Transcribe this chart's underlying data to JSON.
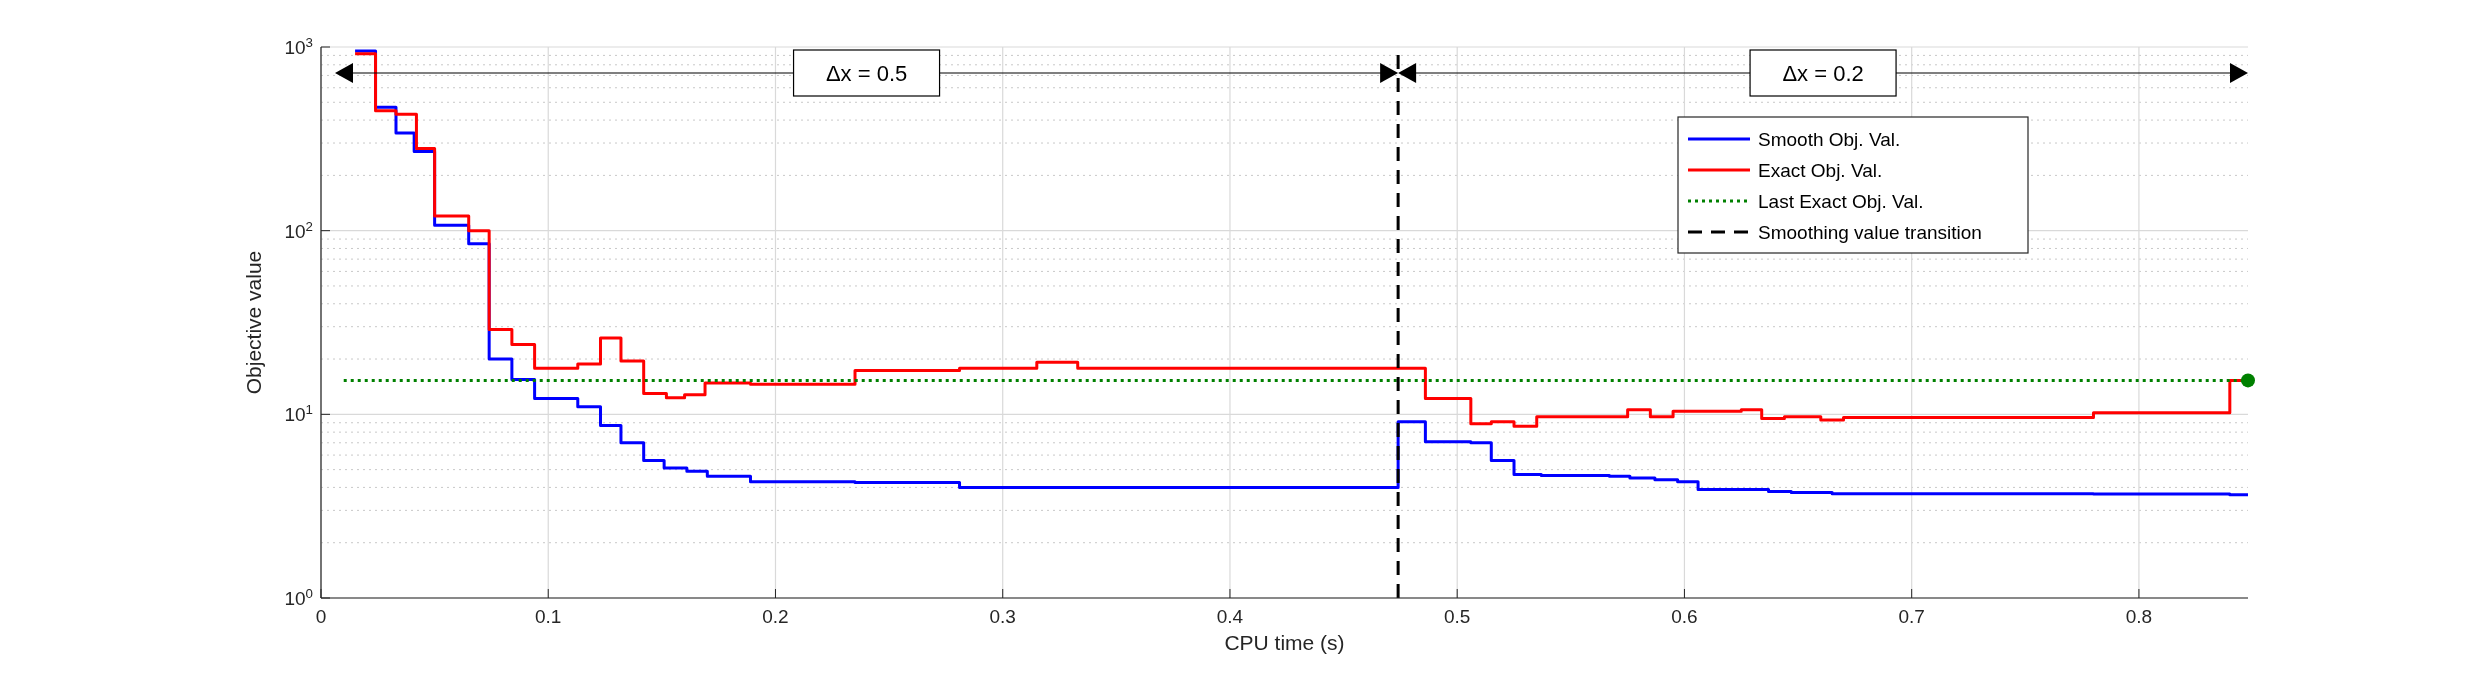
{
  "chart_data": {
    "type": "step",
    "xlabel": "CPU time (s)",
    "ylabel": "Objective value",
    "log": "y",
    "xlim": [
      0,
      0.848
    ],
    "xticks": [
      0,
      0.1,
      0.2,
      0.3,
      0.4,
      0.5,
      0.6,
      0.7,
      0.8
    ],
    "ylim": [
      1,
      1000
    ],
    "yticks": [
      {
        "value": 1,
        "label": "10$^{0}$"
      },
      {
        "value": 10,
        "label": "10$^{1}$"
      },
      {
        "value": 100,
        "label": "10$^{2}$"
      },
      {
        "value": 1000,
        "label": "10$^{3}$"
      }
    ],
    "grid": true,
    "legend": "top right",
    "series": [
      {
        "name": "Smooth Obj. Val.",
        "color": "#0000ff",
        "x": [
          0.015,
          0.024,
          0.033,
          0.041,
          0.05,
          0.065,
          0.074,
          0.084,
          0.094,
          0.113,
          0.123,
          0.132,
          0.142,
          0.151,
          0.161,
          0.17,
          0.189,
          0.235,
          0.281,
          0.474,
          0.474,
          0.486,
          0.506,
          0.515,
          0.525,
          0.537,
          0.567,
          0.576,
          0.587,
          0.597,
          0.606,
          0.637,
          0.647,
          0.665,
          0.78,
          0.84,
          0.848
        ],
        "values": [
          950,
          470,
          340,
          270,
          107,
          85,
          20,
          15.5,
          12.2,
          11,
          8.7,
          7,
          5.6,
          5.1,
          4.9,
          4.6,
          4.3,
          4.25,
          4.0,
          4.0,
          9.1,
          7.1,
          7.0,
          5.6,
          4.7,
          4.65,
          4.6,
          4.5,
          4.4,
          4.3,
          3.9,
          3.8,
          3.75,
          3.7,
          3.68,
          3.65,
          3.65
        ]
      },
      {
        "name": "Exact Obj. Val.",
        "color": "#ff0000",
        "x": [
          0.015,
          0.024,
          0.033,
          0.042,
          0.05,
          0.065,
          0.074,
          0.084,
          0.094,
          0.113,
          0.123,
          0.132,
          0.142,
          0.152,
          0.16,
          0.169,
          0.189,
          0.235,
          0.281,
          0.315,
          0.333,
          0.486,
          0.506,
          0.515,
          0.525,
          0.535,
          0.575,
          0.585,
          0.595,
          0.625,
          0.634,
          0.644,
          0.66,
          0.67,
          0.78,
          0.84,
          0.848
        ],
        "values": [
          920,
          450,
          430,
          280,
          120,
          100,
          29,
          24,
          17.8,
          18.8,
          26,
          19.5,
          13,
          12.3,
          12.8,
          14.8,
          14.6,
          17.3,
          17.8,
          19.2,
          17.8,
          12.2,
          8.9,
          9.1,
          8.6,
          9.7,
          10.6,
          9.7,
          10.4,
          10.6,
          9.5,
          9.7,
          9.3,
          9.6,
          10.2,
          15.3,
          15.3
        ]
      },
      {
        "name": "Last Exact Obj. Val.",
        "color": "#008000",
        "type": "line",
        "line_style": "dotted",
        "x": [
          0.01,
          0.848
        ],
        "values": [
          15.3,
          15.3
        ]
      },
      {
        "name": "Smoothing value transition",
        "color": "#000000",
        "type": "line",
        "line_style": "dashed",
        "x": [
          0.474,
          0.474
        ],
        "values": [
          1,
          1000
        ]
      },
      {
        "color": "#008000",
        "type": "scatter",
        "marker": "circle",
        "x": [
          0.848
        ],
        "values": [
          15.3
        ]
      }
    ],
    "annotations": [
      "Δx = 0.5",
      "Δx = 0.2"
    ]
  }
}
